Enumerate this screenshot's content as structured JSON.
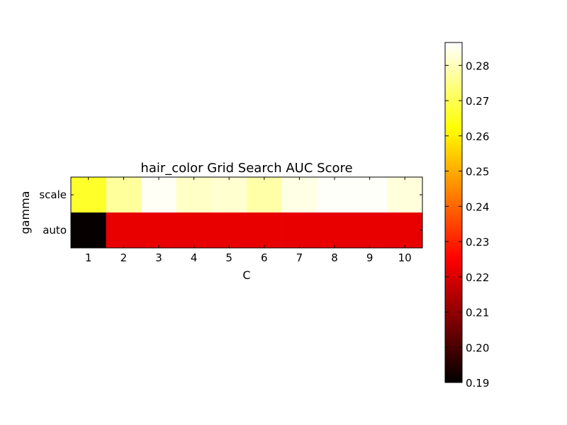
{
  "chart_data": {
    "type": "heatmap",
    "title": "hair_color Grid Search AUC Score",
    "xlabel": "C",
    "ylabel": "gamma",
    "x_categories": [
      "1",
      "2",
      "3",
      "4",
      "5",
      "6",
      "7",
      "8",
      "9",
      "10"
    ],
    "y_categories": [
      "scale",
      "auto"
    ],
    "values": [
      [
        0.266,
        0.277,
        0.2855,
        0.281,
        0.282,
        0.278,
        0.284,
        0.286,
        0.286,
        0.283
      ],
      [
        0.191,
        0.222,
        0.222,
        0.222,
        0.222,
        0.222,
        0.222,
        0.222,
        0.222,
        0.222
      ]
    ],
    "colormap": "hot",
    "colorbar": {
      "min": 0.19,
      "max": 0.2865,
      "ticks": [
        0.19,
        0.2,
        0.21,
        0.22,
        0.23,
        0.24,
        0.25,
        0.26,
        0.27,
        0.28
      ],
      "tick_labels": [
        "0.19",
        "0.20",
        "0.21",
        "0.22",
        "0.23",
        "0.24",
        "0.25",
        "0.26",
        "0.27",
        "0.28"
      ]
    },
    "grid": false
  }
}
